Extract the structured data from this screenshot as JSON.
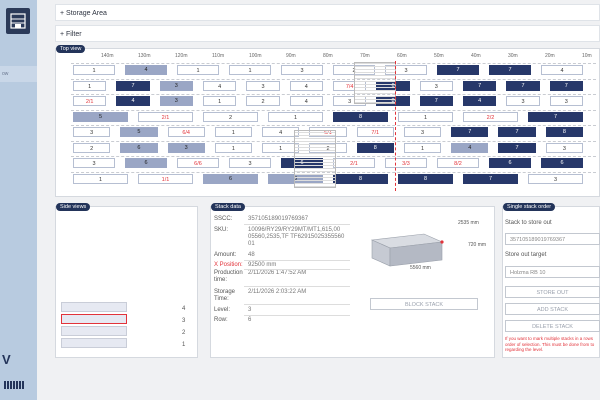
{
  "sidebar": {
    "item": "ow",
    "brand": "V"
  },
  "collapses": {
    "storage": "+ Storage Area",
    "filter": "+ Filter"
  },
  "top_view": {
    "tag": "Top view",
    "ruler": [
      "140m",
      "130m",
      "120m",
      "110m",
      "100m",
      "90m",
      "80m",
      "70m",
      "60m",
      "50m",
      "40m",
      "30m",
      "20m",
      "10m"
    ],
    "rows": [
      [
        [
          "1",
          "light"
        ],
        [
          "4",
          "mid"
        ],
        [
          "1",
          "light"
        ],
        [
          "1",
          "light"
        ],
        [
          "3",
          "light"
        ],
        [
          "2",
          "light"
        ],
        [
          "3",
          "light"
        ],
        [
          "7",
          "dark"
        ],
        [
          "7",
          "dark"
        ],
        [
          "4",
          "light"
        ]
      ],
      [
        [
          "1",
          "light"
        ],
        [
          "7",
          "dark"
        ],
        [
          "3",
          "mid"
        ],
        [
          "4",
          "light"
        ],
        [
          "3",
          "light"
        ],
        [
          "4",
          "light"
        ],
        [
          "7/4",
          "red"
        ],
        [
          "6",
          "dark"
        ],
        [
          "3",
          "light"
        ],
        [
          "7",
          "dark"
        ],
        [
          "7",
          "dark"
        ],
        [
          "7",
          "dark"
        ]
      ],
      [
        [
          "2/1",
          "red"
        ],
        [
          "4",
          "dark"
        ],
        [
          "3",
          "mid"
        ],
        [
          "1",
          "light"
        ],
        [
          "2",
          "light"
        ],
        [
          "4",
          "light"
        ],
        [
          "3",
          "light"
        ],
        [
          "8",
          "dark"
        ],
        [
          "7",
          "dark"
        ],
        [
          "4",
          "dark"
        ],
        [
          "3",
          "light"
        ],
        [
          "3",
          "light"
        ]
      ],
      [
        [
          "5",
          "mid"
        ],
        [
          "2/1",
          "red"
        ],
        [
          "2",
          "light"
        ],
        [
          "1",
          "light"
        ],
        [
          "8",
          "dark"
        ],
        [
          "1",
          "light"
        ],
        [
          "2/2",
          "red"
        ],
        [
          "7",
          "dark"
        ]
      ],
      [
        [
          "3",
          "light"
        ],
        [
          "5",
          "mid"
        ],
        [
          "6/4",
          "red"
        ],
        [
          "1",
          "light"
        ],
        [
          "4",
          "light"
        ],
        [
          "6/1",
          "red"
        ],
        [
          "7/1",
          "red"
        ],
        [
          "3",
          "light"
        ],
        [
          "7",
          "dark"
        ],
        [
          "7",
          "dark"
        ],
        [
          "8",
          "dark"
        ]
      ],
      [
        [
          "2",
          "light"
        ],
        [
          "6",
          "mid"
        ],
        [
          "3",
          "mid"
        ],
        [
          "1",
          "light"
        ],
        [
          "1",
          "light"
        ],
        [
          "2",
          "light"
        ],
        [
          "8",
          "dark"
        ],
        [
          "1",
          "light"
        ],
        [
          "4",
          "mid"
        ],
        [
          "7",
          "dark"
        ],
        [
          "3",
          "light"
        ]
      ],
      [
        [
          "3",
          "light"
        ],
        [
          "6",
          "mid"
        ],
        [
          "6/6",
          "red"
        ],
        [
          "3",
          "light"
        ],
        [
          "6",
          "dark"
        ],
        [
          "2/1",
          "red"
        ],
        [
          "3/3",
          "red"
        ],
        [
          "8/2",
          "red"
        ],
        [
          "6",
          "dark"
        ],
        [
          "6",
          "dark"
        ]
      ],
      [
        [
          "1",
          "light"
        ],
        [
          "1/1",
          "red"
        ],
        [
          "6",
          "mid"
        ],
        [
          "8",
          "mid"
        ],
        [
          "8",
          "dark"
        ],
        [
          "8",
          "dark"
        ],
        [
          "7",
          "dark"
        ],
        [
          "3",
          "light"
        ]
      ]
    ]
  },
  "side_views": {
    "tag": "Side views",
    "levels": [
      "4",
      "3",
      "2",
      "1"
    ]
  },
  "stack_data": {
    "tag": "Stack data",
    "fields": [
      {
        "label": "SSCC:",
        "value": "357105189019769367"
      },
      {
        "label": "SKU:",
        "value": "10096/RY29/RY29MT/MT1,615,00 05560,2535,TF TF62915025355560 01"
      },
      {
        "label": "Amount:",
        "value": "48"
      },
      {
        "label": "X Position:",
        "value": "92500 mm"
      },
      {
        "label": "Production time:",
        "value": "2/11/2026 1:47:52 AM"
      },
      {
        "label": "Storage Time:",
        "value": "2/11/2026 2:03:22 AM"
      },
      {
        "label": "Level:",
        "value": "3"
      },
      {
        "label": "Row:",
        "value": "6"
      }
    ],
    "dims": {
      "depth": "2535 mm",
      "height": "720 mm",
      "width": "5560 mm"
    },
    "block_label": "BLOCK STACK"
  },
  "single_stack": {
    "tag": "Single stack order",
    "stack_label": "Stack to store out",
    "stack_value": "357105189019769367",
    "target_label": "Store out target",
    "target_value": "Holzma RB 10",
    "buttons": [
      "STORE OUT",
      "ADD STACK",
      "DELETE STACK"
    ],
    "note": "If you want to mark multiple stacks in a rows order of selection. This must be done from to regarding the level."
  },
  "colors": {
    "navy": "#23345a",
    "red": "#e2333a",
    "orange": "#e08a2a"
  }
}
